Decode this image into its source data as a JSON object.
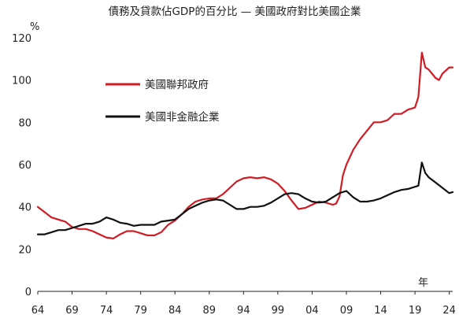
{
  "chart_data": {
    "type": "line",
    "title": "債務及貸款佔GDP的百分比 — 美國政府對比美國企業",
    "ylabel": "%",
    "xlabel": "年",
    "xlim": [
      1964,
      2024.5
    ],
    "ylim": [
      0,
      120
    ],
    "grid": false,
    "legend_position": "upper-left",
    "x_tick_values": [
      1964,
      1969,
      1974,
      1979,
      1984,
      1989,
      1994,
      1999,
      2004,
      2009,
      2014,
      2019,
      2024
    ],
    "x_tick_labels": [
      "64",
      "69",
      "74",
      "79",
      "84",
      "89",
      "94",
      "99",
      "04",
      "09",
      "14",
      "19",
      "24"
    ],
    "y_ticks": [
      0,
      20,
      40,
      60,
      80,
      100,
      120
    ],
    "series": [
      {
        "name": "美國聯邦政府",
        "color": "#d01c24",
        "points": [
          [
            1964,
            40
          ],
          [
            1965,
            37.5
          ],
          [
            1966,
            35
          ],
          [
            1967,
            34
          ],
          [
            1968,
            33
          ],
          [
            1969,
            30.5
          ],
          [
            1970,
            29.5
          ],
          [
            1971,
            29.5
          ],
          [
            1972,
            28.5
          ],
          [
            1973,
            27
          ],
          [
            1974,
            25.5
          ],
          [
            1975,
            25
          ],
          [
            1976,
            27
          ],
          [
            1977,
            28.5
          ],
          [
            1978,
            28.5
          ],
          [
            1979,
            27.5
          ],
          [
            1980,
            26.5
          ],
          [
            1981,
            26.5
          ],
          [
            1982,
            28
          ],
          [
            1983,
            31.5
          ],
          [
            1984,
            33.5
          ],
          [
            1985,
            36.5
          ],
          [
            1986,
            40
          ],
          [
            1987,
            42.5
          ],
          [
            1988,
            43.5
          ],
          [
            1989,
            44
          ],
          [
            1990,
            44
          ],
          [
            1991,
            46
          ],
          [
            1992,
            49
          ],
          [
            1993,
            52
          ],
          [
            1994,
            53.5
          ],
          [
            1995,
            54
          ],
          [
            1996,
            53.5
          ],
          [
            1997,
            54
          ],
          [
            1998,
            53
          ],
          [
            1999,
            51
          ],
          [
            2000,
            47.5
          ],
          [
            2001,
            43
          ],
          [
            2002,
            39
          ],
          [
            2003,
            39.5
          ],
          [
            2004,
            41
          ],
          [
            2005,
            42.5
          ],
          [
            2006,
            42
          ],
          [
            2007,
            41
          ],
          [
            2007.5,
            41.5
          ],
          [
            2008,
            45
          ],
          [
            2008.5,
            55
          ],
          [
            2009,
            60
          ],
          [
            2010,
            67
          ],
          [
            2011,
            72
          ],
          [
            2012,
            76
          ],
          [
            2013,
            80
          ],
          [
            2014,
            80
          ],
          [
            2015,
            81
          ],
          [
            2016,
            84
          ],
          [
            2017,
            84
          ],
          [
            2018,
            86
          ],
          [
            2019,
            87
          ],
          [
            2019.5,
            92
          ],
          [
            2020,
            113
          ],
          [
            2020.5,
            106
          ],
          [
            2021,
            105
          ],
          [
            2022,
            101
          ],
          [
            2022.5,
            100
          ],
          [
            2023,
            103
          ],
          [
            2024,
            106
          ],
          [
            2024.5,
            106
          ]
        ]
      },
      {
        "name": "美國非金融企業",
        "color": "#111111",
        "points": [
          [
            1964,
            27
          ],
          [
            1965,
            27
          ],
          [
            1966,
            28
          ],
          [
            1967,
            29
          ],
          [
            1968,
            29
          ],
          [
            1969,
            30
          ],
          [
            1970,
            31
          ],
          [
            1971,
            32
          ],
          [
            1972,
            32
          ],
          [
            1973,
            33
          ],
          [
            1974,
            35
          ],
          [
            1975,
            34
          ],
          [
            1976,
            32.5
          ],
          [
            1977,
            32
          ],
          [
            1978,
            31
          ],
          [
            1979,
            31.5
          ],
          [
            1980,
            31.5
          ],
          [
            1981,
            31.5
          ],
          [
            1982,
            33
          ],
          [
            1983,
            33.5
          ],
          [
            1984,
            34
          ],
          [
            1985,
            36.5
          ],
          [
            1986,
            39
          ],
          [
            1987,
            40.5
          ],
          [
            1988,
            42
          ],
          [
            1989,
            43
          ],
          [
            1990,
            43.5
          ],
          [
            1991,
            43
          ],
          [
            1992,
            41
          ],
          [
            1993,
            39
          ],
          [
            1994,
            39
          ],
          [
            1995,
            40
          ],
          [
            1996,
            40
          ],
          [
            1997,
            40.5
          ],
          [
            1998,
            42
          ],
          [
            1999,
            44
          ],
          [
            2000,
            46
          ],
          [
            2001,
            46.5
          ],
          [
            2002,
            46
          ],
          [
            2003,
            44
          ],
          [
            2004,
            42.5
          ],
          [
            2005,
            42
          ],
          [
            2006,
            42.5
          ],
          [
            2007,
            44.5
          ],
          [
            2008,
            46.5
          ],
          [
            2009,
            47.5
          ],
          [
            2010,
            44.5
          ],
          [
            2011,
            42.5
          ],
          [
            2012,
            42.5
          ],
          [
            2013,
            43
          ],
          [
            2014,
            44
          ],
          [
            2015,
            45.5
          ],
          [
            2016,
            47
          ],
          [
            2017,
            48
          ],
          [
            2018,
            48.5
          ],
          [
            2019,
            49.5
          ],
          [
            2019.5,
            50
          ],
          [
            2020,
            61
          ],
          [
            2020.5,
            56
          ],
          [
            2021,
            54
          ],
          [
            2022,
            51.5
          ],
          [
            2023,
            49
          ],
          [
            2024,
            46.5
          ],
          [
            2024.5,
            47
          ]
        ]
      }
    ]
  }
}
